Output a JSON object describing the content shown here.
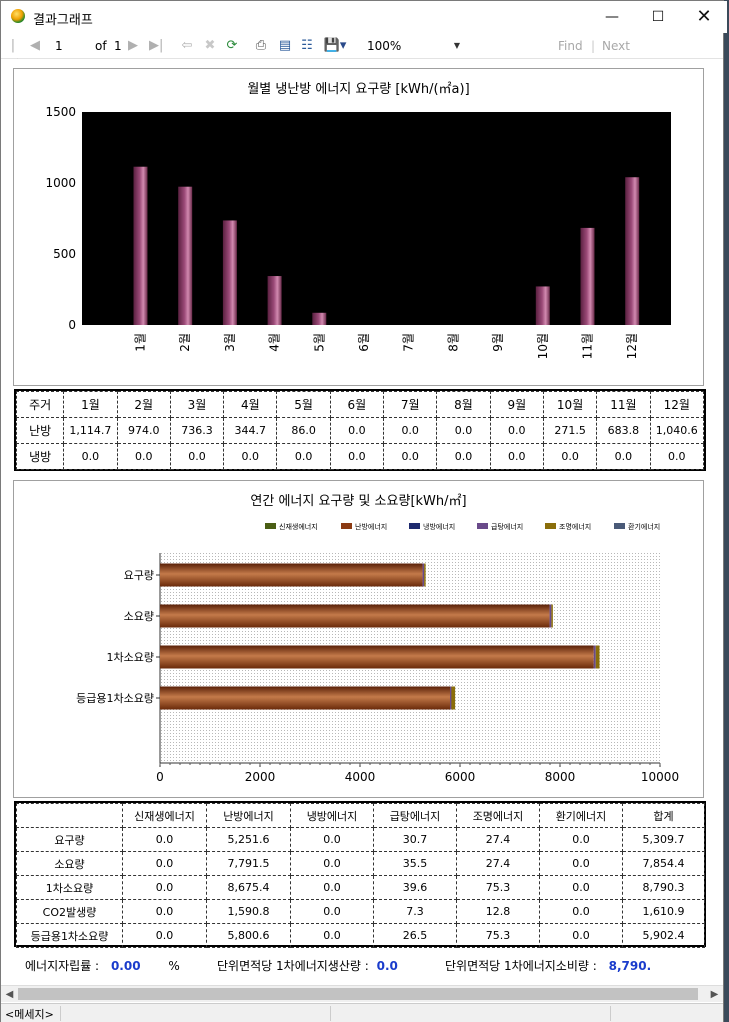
{
  "window": {
    "title": "결과그래프"
  },
  "toolbar": {
    "page_value": "1",
    "of_label": "of",
    "page_total": "1",
    "zoom": "100%",
    "find_label": "Find",
    "separator": "|",
    "next_label": "Next"
  },
  "chart1": {
    "title": "월별 냉난방 에너지 요구량 [kWh/(㎡a)]",
    "chart_data": {
      "type": "bar",
      "categories": [
        "1월",
        "2월",
        "3월",
        "4월",
        "5월",
        "6월",
        "7월",
        "8월",
        "9월",
        "10월",
        "11월",
        "12월"
      ],
      "series": [
        {
          "values": [
            1114.7,
            974.0,
            736.3,
            344.7,
            86.0,
            0.0,
            0.0,
            0.0,
            0.0,
            271.5,
            683.8,
            1040.6
          ]
        }
      ],
      "ylim": [
        0,
        1500
      ],
      "yticks": [
        "0",
        "500",
        "1000",
        "1500"
      ],
      "bar_color": "#9b4a78",
      "background": "#000000"
    }
  },
  "table1": {
    "header": [
      "주거",
      "1월",
      "2월",
      "3월",
      "4월",
      "5월",
      "6월",
      "7월",
      "8월",
      "9월",
      "10월",
      "11월",
      "12월"
    ],
    "rows": [
      [
        "난방",
        "1,114.7",
        "974.0",
        "736.3",
        "344.7",
        "86.0",
        "0.0",
        "0.0",
        "0.0",
        "0.0",
        "271.5",
        "683.8",
        "1,040.6"
      ],
      [
        "냉방",
        "0.0",
        "0.0",
        "0.0",
        "0.0",
        "0.0",
        "0.0",
        "0.0",
        "0.0",
        "0.0",
        "0.0",
        "0.0",
        "0.0"
      ]
    ]
  },
  "chart2": {
    "title": "연간 에너지 요구량 및 소요량[kWh/㎡]",
    "chart_data": {
      "type": "bar",
      "orientation": "horizontal",
      "stacked": true,
      "categories": [
        "요구량",
        "소요량",
        "1차소요량",
        "등급용1차소요량"
      ],
      "series": [
        {
          "name": "신재생에너지",
          "color": "#4a5e14",
          "values": [
            0.0,
            0.0,
            0.0,
            0.0
          ]
        },
        {
          "name": "난방에너지",
          "color": "#8b3a12",
          "values": [
            5251.6,
            7791.5,
            8675.4,
            5800.6
          ]
        },
        {
          "name": "냉방에너지",
          "color": "#1e2a6e",
          "values": [
            0.0,
            0.0,
            0.0,
            0.0
          ]
        },
        {
          "name": "급탕에너지",
          "color": "#6a4a8a",
          "values": [
            30.7,
            35.5,
            39.6,
            26.5
          ]
        },
        {
          "name": "조명에너지",
          "color": "#8a6e0a",
          "values": [
            27.4,
            27.4,
            75.3,
            75.3
          ]
        },
        {
          "name": "환기에너지",
          "color": "#4a5a78",
          "values": [
            0.0,
            0.0,
            0.0,
            0.0
          ]
        }
      ],
      "xlim": [
        0,
        10000
      ],
      "xticks": [
        "0",
        "2000",
        "4000",
        "6000",
        "8000",
        "10000"
      ],
      "legend": "top-right"
    }
  },
  "table2": {
    "header": [
      "",
      "신재생에너지",
      "난방에너지",
      "냉방에너지",
      "급탕에너지",
      "조명에너지",
      "환기에너지",
      "합계"
    ],
    "rows": [
      [
        "요구량",
        "0.0",
        "5,251.6",
        "0.0",
        "30.7",
        "27.4",
        "0.0",
        "5,309.7"
      ],
      [
        "소요량",
        "0.0",
        "7,791.5",
        "0.0",
        "35.5",
        "27.4",
        "0.0",
        "7,854.4"
      ],
      [
        "1차소요량",
        "0.0",
        "8,675.4",
        "0.0",
        "39.6",
        "75.3",
        "0.0",
        "8,790.3"
      ],
      [
        "CO2발생량",
        "0.0",
        "1,590.8",
        "0.0",
        "7.3",
        "12.8",
        "0.0",
        "1,610.9"
      ],
      [
        "등급용1차소요량",
        "0.0",
        "5,800.6",
        "0.0",
        "26.5",
        "75.3",
        "0.0",
        "5,902.4"
      ]
    ]
  },
  "summary": {
    "self_label": "에너지자립률 :",
    "self_value": "0.00",
    "self_unit": "%",
    "prod_label": "단위면적당 1차에너지생산량 :",
    "prod_value": "0.0",
    "cons_label": "단위면적당 1차에너지소비량 :",
    "cons_value": "8,790."
  },
  "status": {
    "message": "<메세지>"
  }
}
